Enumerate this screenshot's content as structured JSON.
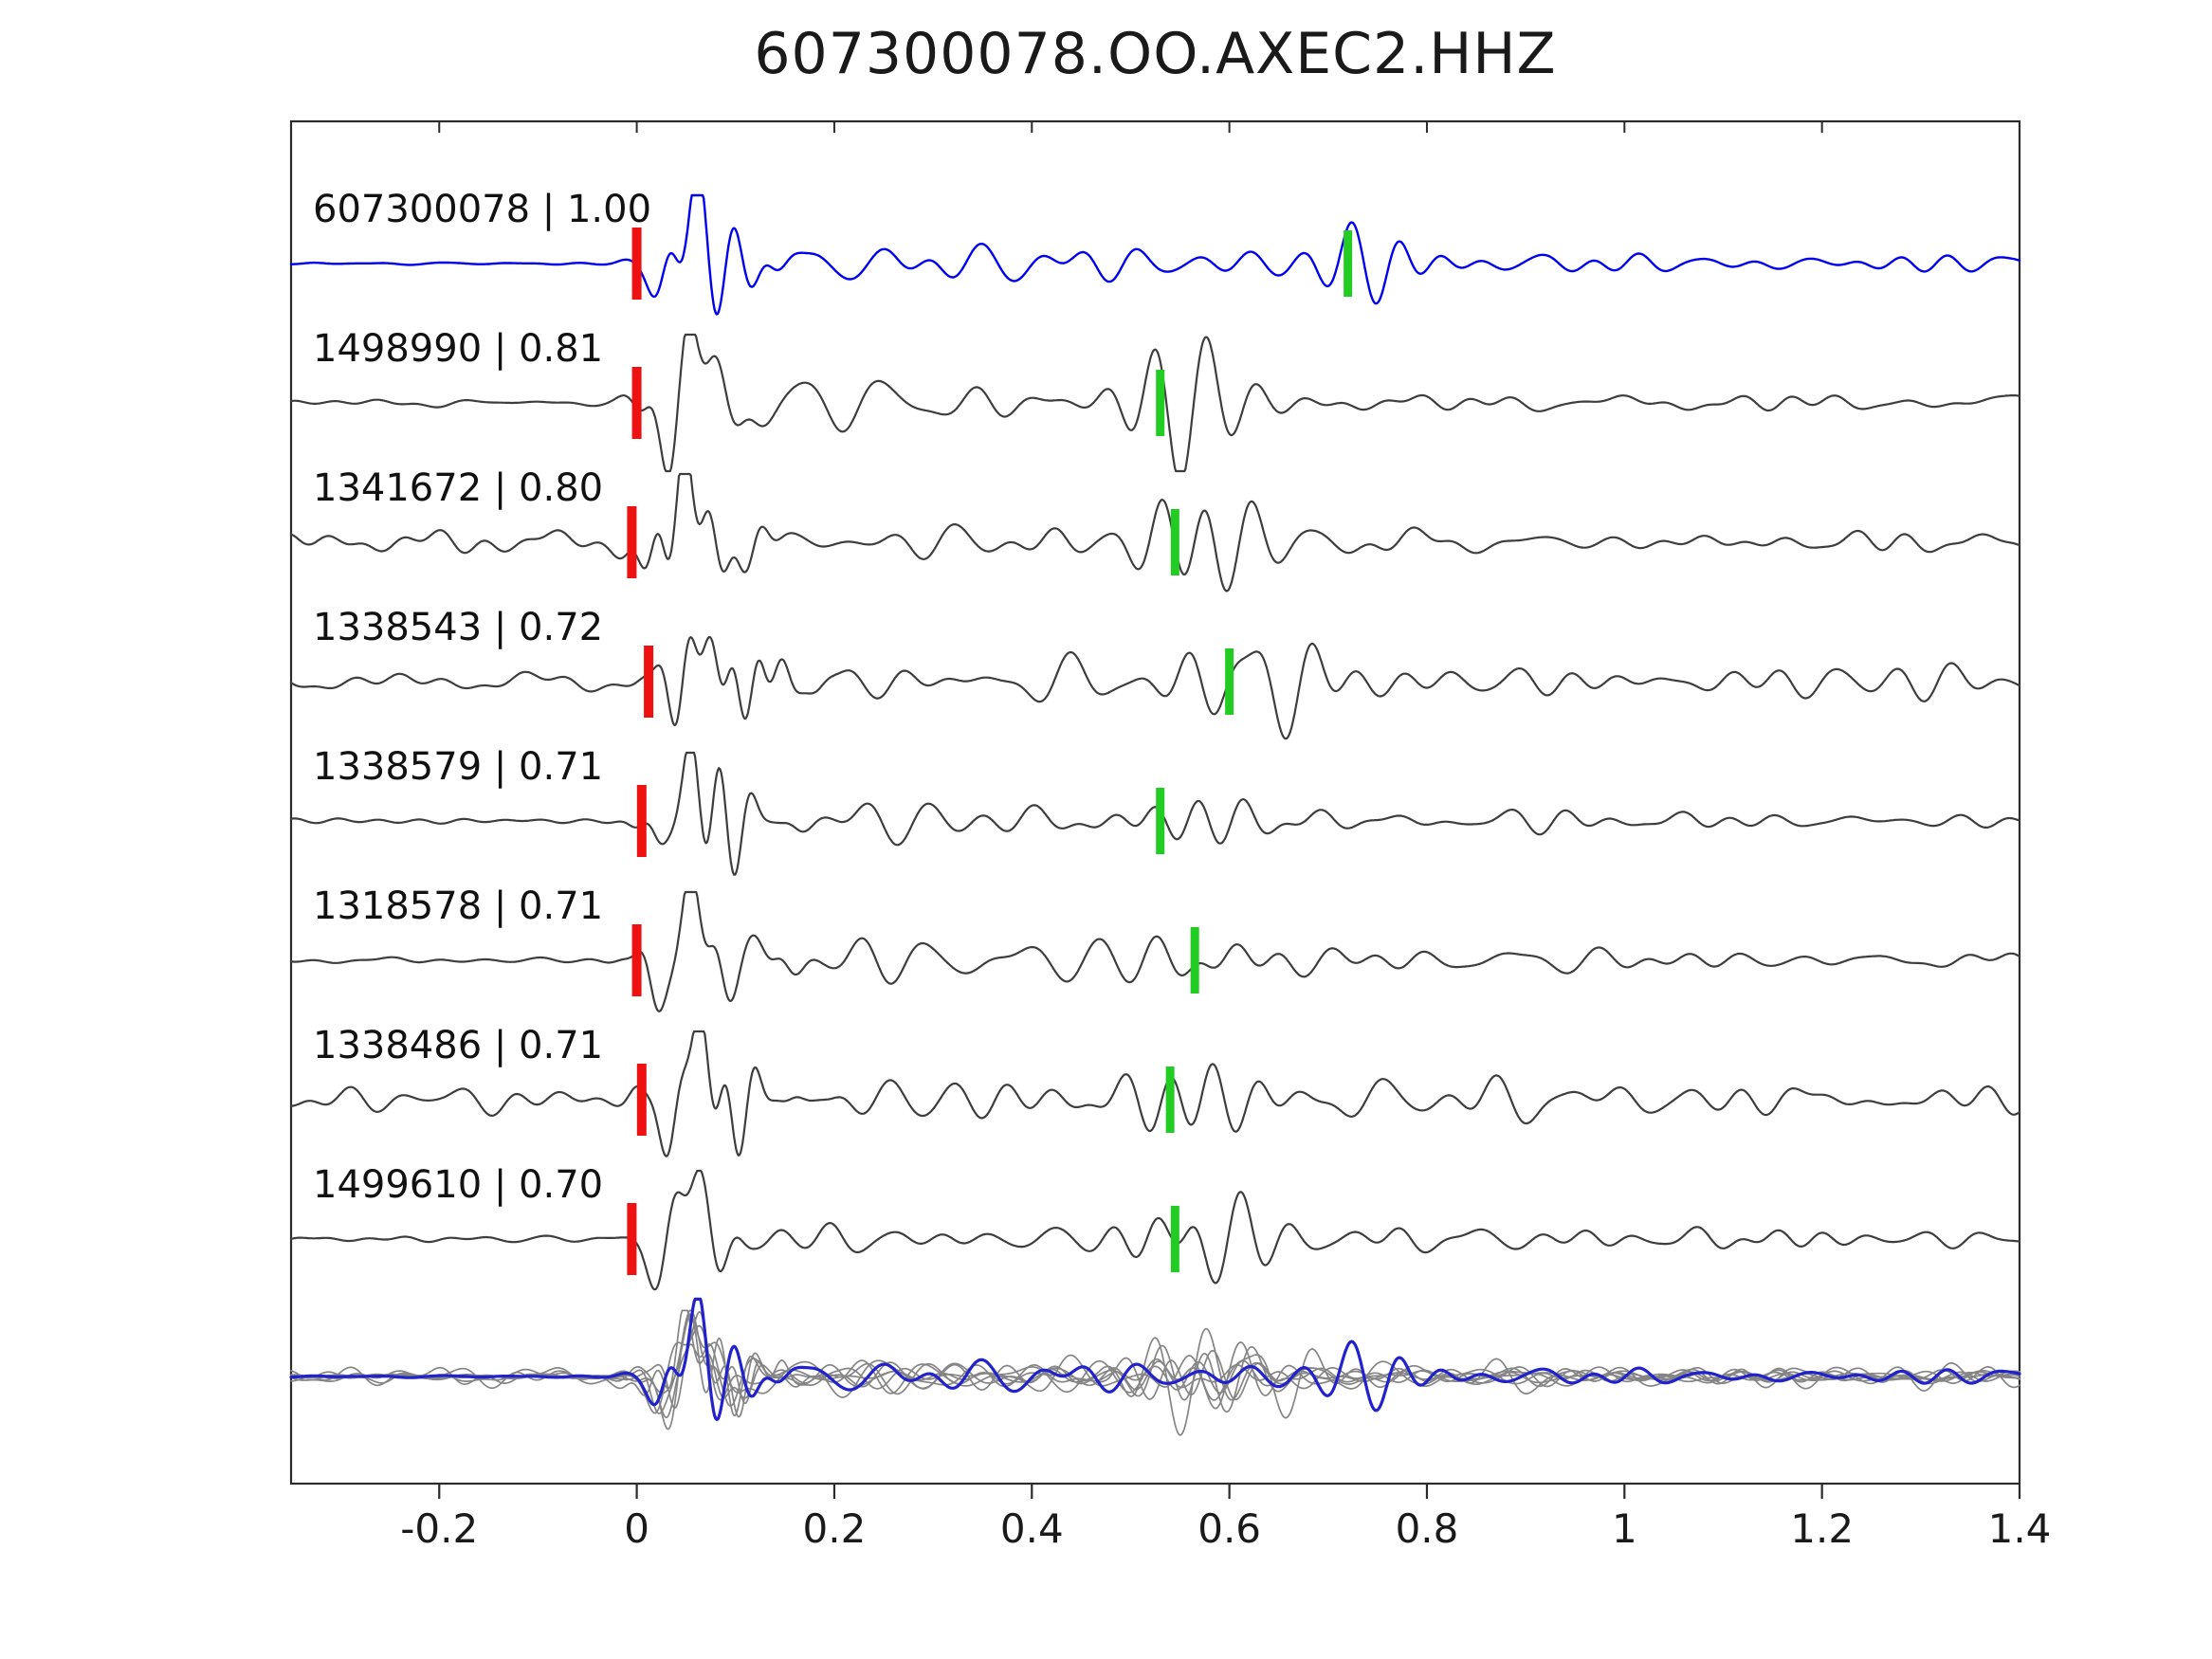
{
  "title": "607300078.OO.AXEC2.HHZ",
  "chart_data": {
    "type": "line",
    "title": "607300078.OO.AXEC2.HHZ",
    "xlabel": "",
    "ylabel": "",
    "xlim": [
      -0.35,
      1.4
    ],
    "x_ticks": [
      -0.2,
      0,
      0.2,
      0.4,
      0.6,
      0.8,
      1,
      1.2,
      1.4
    ],
    "x_tick_labels": [
      "-0.2",
      "0",
      "0.2",
      "0.4",
      "0.6",
      "0.8",
      "1",
      "1.2",
      "1.4"
    ],
    "grid": false,
    "legend": "none",
    "description": "Template waveform (blue) and matched event waveforms (gray) with red pick markers near 0 s and green secondary markers; bottom row shows all traces overlaid with the template in blue.",
    "traces": [
      {
        "id": "607300078",
        "correlation": "1.00",
        "label": "607300078 | 1.00",
        "color": "#0000ee",
        "red_pick": 0.0,
        "green_pick": 0.72,
        "baseline_noise": "low"
      },
      {
        "id": "1498990",
        "correlation": "0.81",
        "label": "1498990 | 0.81",
        "color": "#3d3d3d",
        "red_pick": 0.0,
        "green_pick": 0.53,
        "baseline_noise": "medium"
      },
      {
        "id": "1341672",
        "correlation": "0.80",
        "label": "1341672 | 0.80",
        "color": "#3d3d3d",
        "red_pick": -0.005,
        "green_pick": 0.545,
        "baseline_noise": "high"
      },
      {
        "id": "1338543",
        "correlation": "0.72",
        "label": "1338543 | 0.72",
        "color": "#3d3d3d",
        "red_pick": 0.012,
        "green_pick": 0.6,
        "baseline_noise": "high"
      },
      {
        "id": "1338579",
        "correlation": "0.71",
        "label": "1338579 | 0.71",
        "color": "#3d3d3d",
        "red_pick": 0.005,
        "green_pick": 0.53,
        "baseline_noise": "medium"
      },
      {
        "id": "1318578",
        "correlation": "0.71",
        "label": "1318578 | 0.71",
        "color": "#3d3d3d",
        "red_pick": 0.0,
        "green_pick": 0.565,
        "baseline_noise": "medium"
      },
      {
        "id": "1338486",
        "correlation": "0.71",
        "label": "1338486 | 0.71",
        "color": "#3d3d3d",
        "red_pick": 0.005,
        "green_pick": 0.54,
        "baseline_noise": "high"
      },
      {
        "id": "1499610",
        "correlation": "0.70",
        "label": "1499610 | 0.70",
        "color": "#3d3d3d",
        "red_pick": -0.005,
        "green_pick": 0.545,
        "baseline_noise": "medium"
      }
    ],
    "marker_colors": {
      "pick": "#ee1111",
      "secondary": "#22cc22"
    },
    "overlay": {
      "gray": "#858585",
      "blue": "#2222cc"
    },
    "axis_color": "#2b2b2b"
  }
}
